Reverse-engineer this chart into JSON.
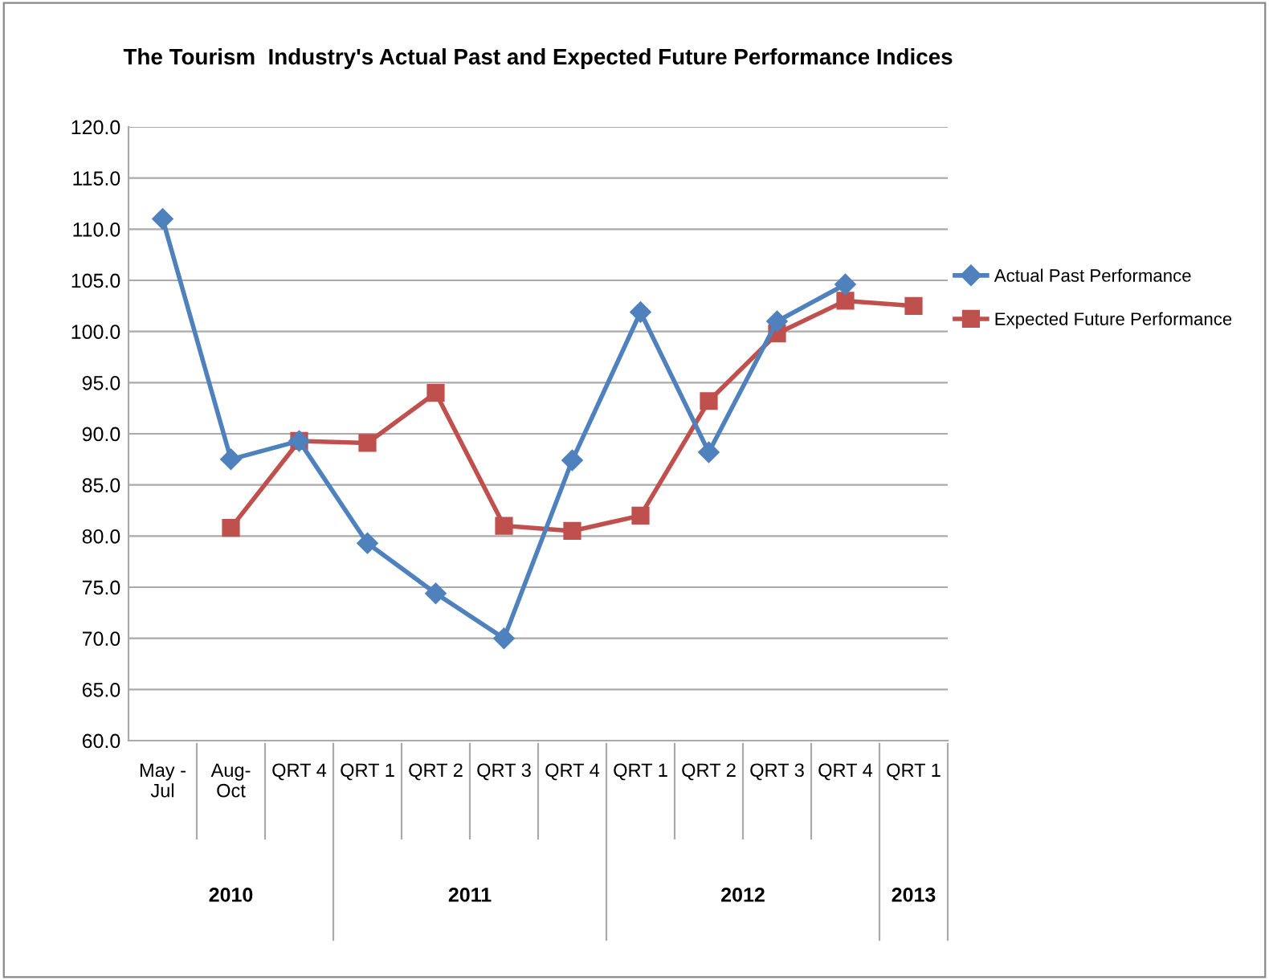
{
  "chart_data": {
    "type": "line",
    "title": "The Tourism  Industry's Actual Past and Expected Future Performance Indices",
    "categories": [
      "May -\nJul",
      "Aug-\nOct",
      "QRT 4",
      "QRT 1",
      "QRT 2",
      "QRT 3",
      "QRT 4",
      "QRT 1",
      "QRT 2",
      "QRT 3",
      "QRT 4",
      "QRT 1"
    ],
    "series": [
      {
        "name": "Actual Past Performance",
        "color": "#4f81bd",
        "marker": "diamond",
        "values": [
          111.0,
          87.5,
          89.3,
          79.3,
          74.4,
          70.0,
          87.4,
          101.9,
          88.2,
          101.0,
          104.6,
          null
        ]
      },
      {
        "name": "Expected Future Performance",
        "color": "#c0504d",
        "marker": "square",
        "values": [
          null,
          80.8,
          89.3,
          89.1,
          94.0,
          81.0,
          80.5,
          82.0,
          93.2,
          99.8,
          103.0,
          102.5
        ]
      }
    ],
    "annotations": [
      "2010",
      "2011",
      "2012",
      "2013"
    ],
    "ylim": [
      60,
      120
    ],
    "yticks": [
      {
        "value": 60,
        "label": "60.0"
      },
      {
        "value": 65,
        "label": "65.0"
      },
      {
        "value": 70,
        "label": "70.0"
      },
      {
        "value": 75,
        "label": "75.0"
      },
      {
        "value": 80,
        "label": "80.0"
      },
      {
        "value": 85,
        "label": "85.0"
      },
      {
        "value": 90,
        "label": "90.0"
      },
      {
        "value": 95,
        "label": "95.0"
      },
      {
        "value": 100,
        "label": "100.0"
      },
      {
        "value": 105,
        "label": "105.0"
      },
      {
        "value": 110,
        "label": "110.0"
      },
      {
        "value": 115,
        "label": "115.0"
      },
      {
        "value": 120,
        "label": "120.0"
      }
    ],
    "grid": "y",
    "legend": "right",
    "line_style": "solid"
  }
}
